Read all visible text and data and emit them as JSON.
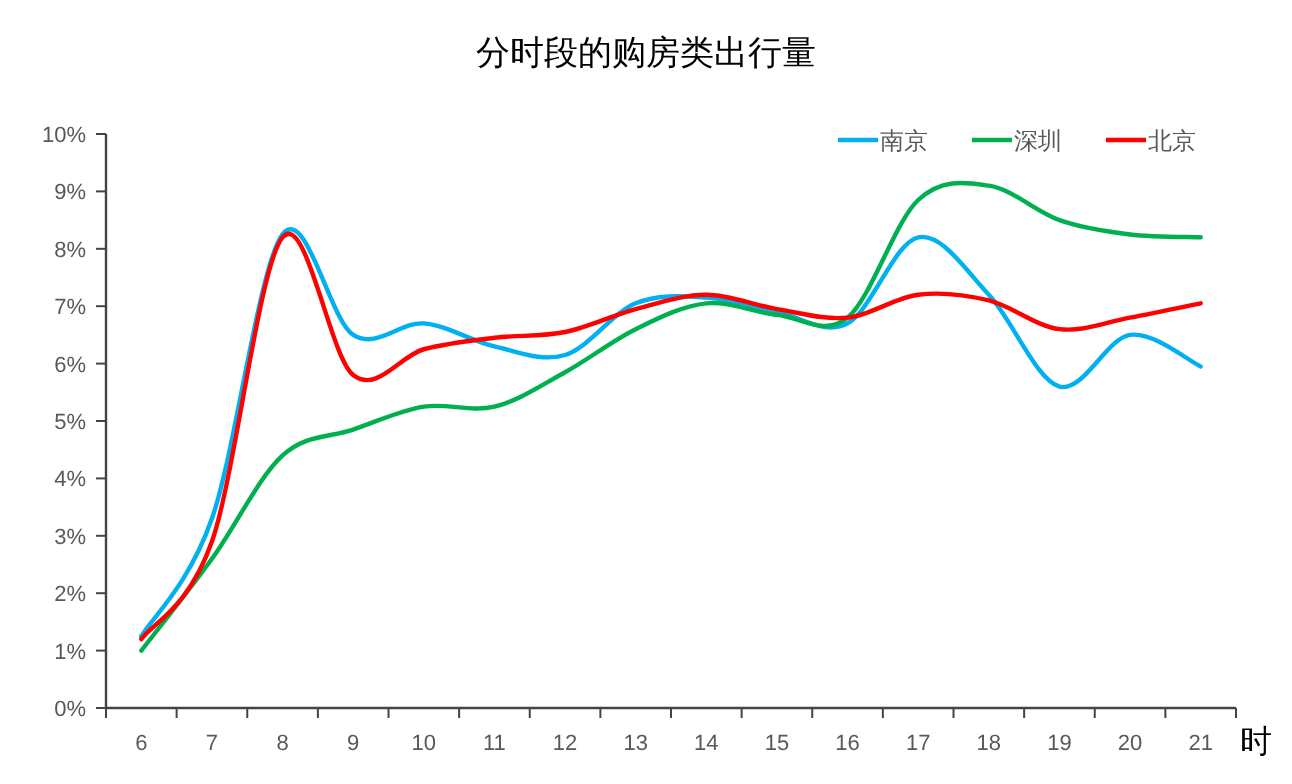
{
  "chart_data": {
    "type": "line",
    "title": "分时段的购房类出行量",
    "xlabel": "时",
    "categories": [
      "6",
      "7",
      "8",
      "9",
      "10",
      "11",
      "12",
      "13",
      "14",
      "15",
      "16",
      "17",
      "18",
      "19",
      "20",
      "21"
    ],
    "ylim": [
      0,
      10
    ],
    "yticks": [
      {
        "value": 0,
        "label": "0%"
      },
      {
        "value": 1,
        "label": "1%"
      },
      {
        "value": 2,
        "label": "2%"
      },
      {
        "value": 3,
        "label": "3%"
      },
      {
        "value": 4,
        "label": "4%"
      },
      {
        "value": 5,
        "label": "5%"
      },
      {
        "value": 6,
        "label": "6%"
      },
      {
        "value": 7,
        "label": "7%"
      },
      {
        "value": 8,
        "label": "8%"
      },
      {
        "value": 9,
        "label": "9%"
      },
      {
        "value": 10,
        "label": "10%"
      }
    ],
    "grid": false,
    "legend": "top right",
    "marker": "none",
    "line_style": "solid",
    "series": [
      {
        "name": "南京",
        "color": "#00b0f0",
        "values": [
          1.25,
          3.3,
          8.25,
          6.5,
          6.7,
          6.3,
          6.15,
          7.05,
          7.15,
          6.9,
          6.7,
          8.2,
          7.2,
          5.6,
          6.5,
          5.95
        ]
      },
      {
        "name": "深圳",
        "color": "#00b050",
        "values": [
          1.0,
          2.6,
          4.4,
          4.85,
          5.25,
          5.25,
          5.85,
          6.6,
          7.05,
          6.85,
          6.8,
          8.85,
          9.1,
          8.5,
          8.25,
          8.2
        ]
      },
      {
        "name": "北京",
        "color": "#ff0000",
        "values": [
          1.2,
          2.9,
          8.2,
          5.8,
          6.25,
          6.45,
          6.55,
          6.95,
          7.2,
          6.95,
          6.8,
          7.2,
          7.1,
          6.6,
          6.8,
          7.05
        ]
      }
    ]
  }
}
